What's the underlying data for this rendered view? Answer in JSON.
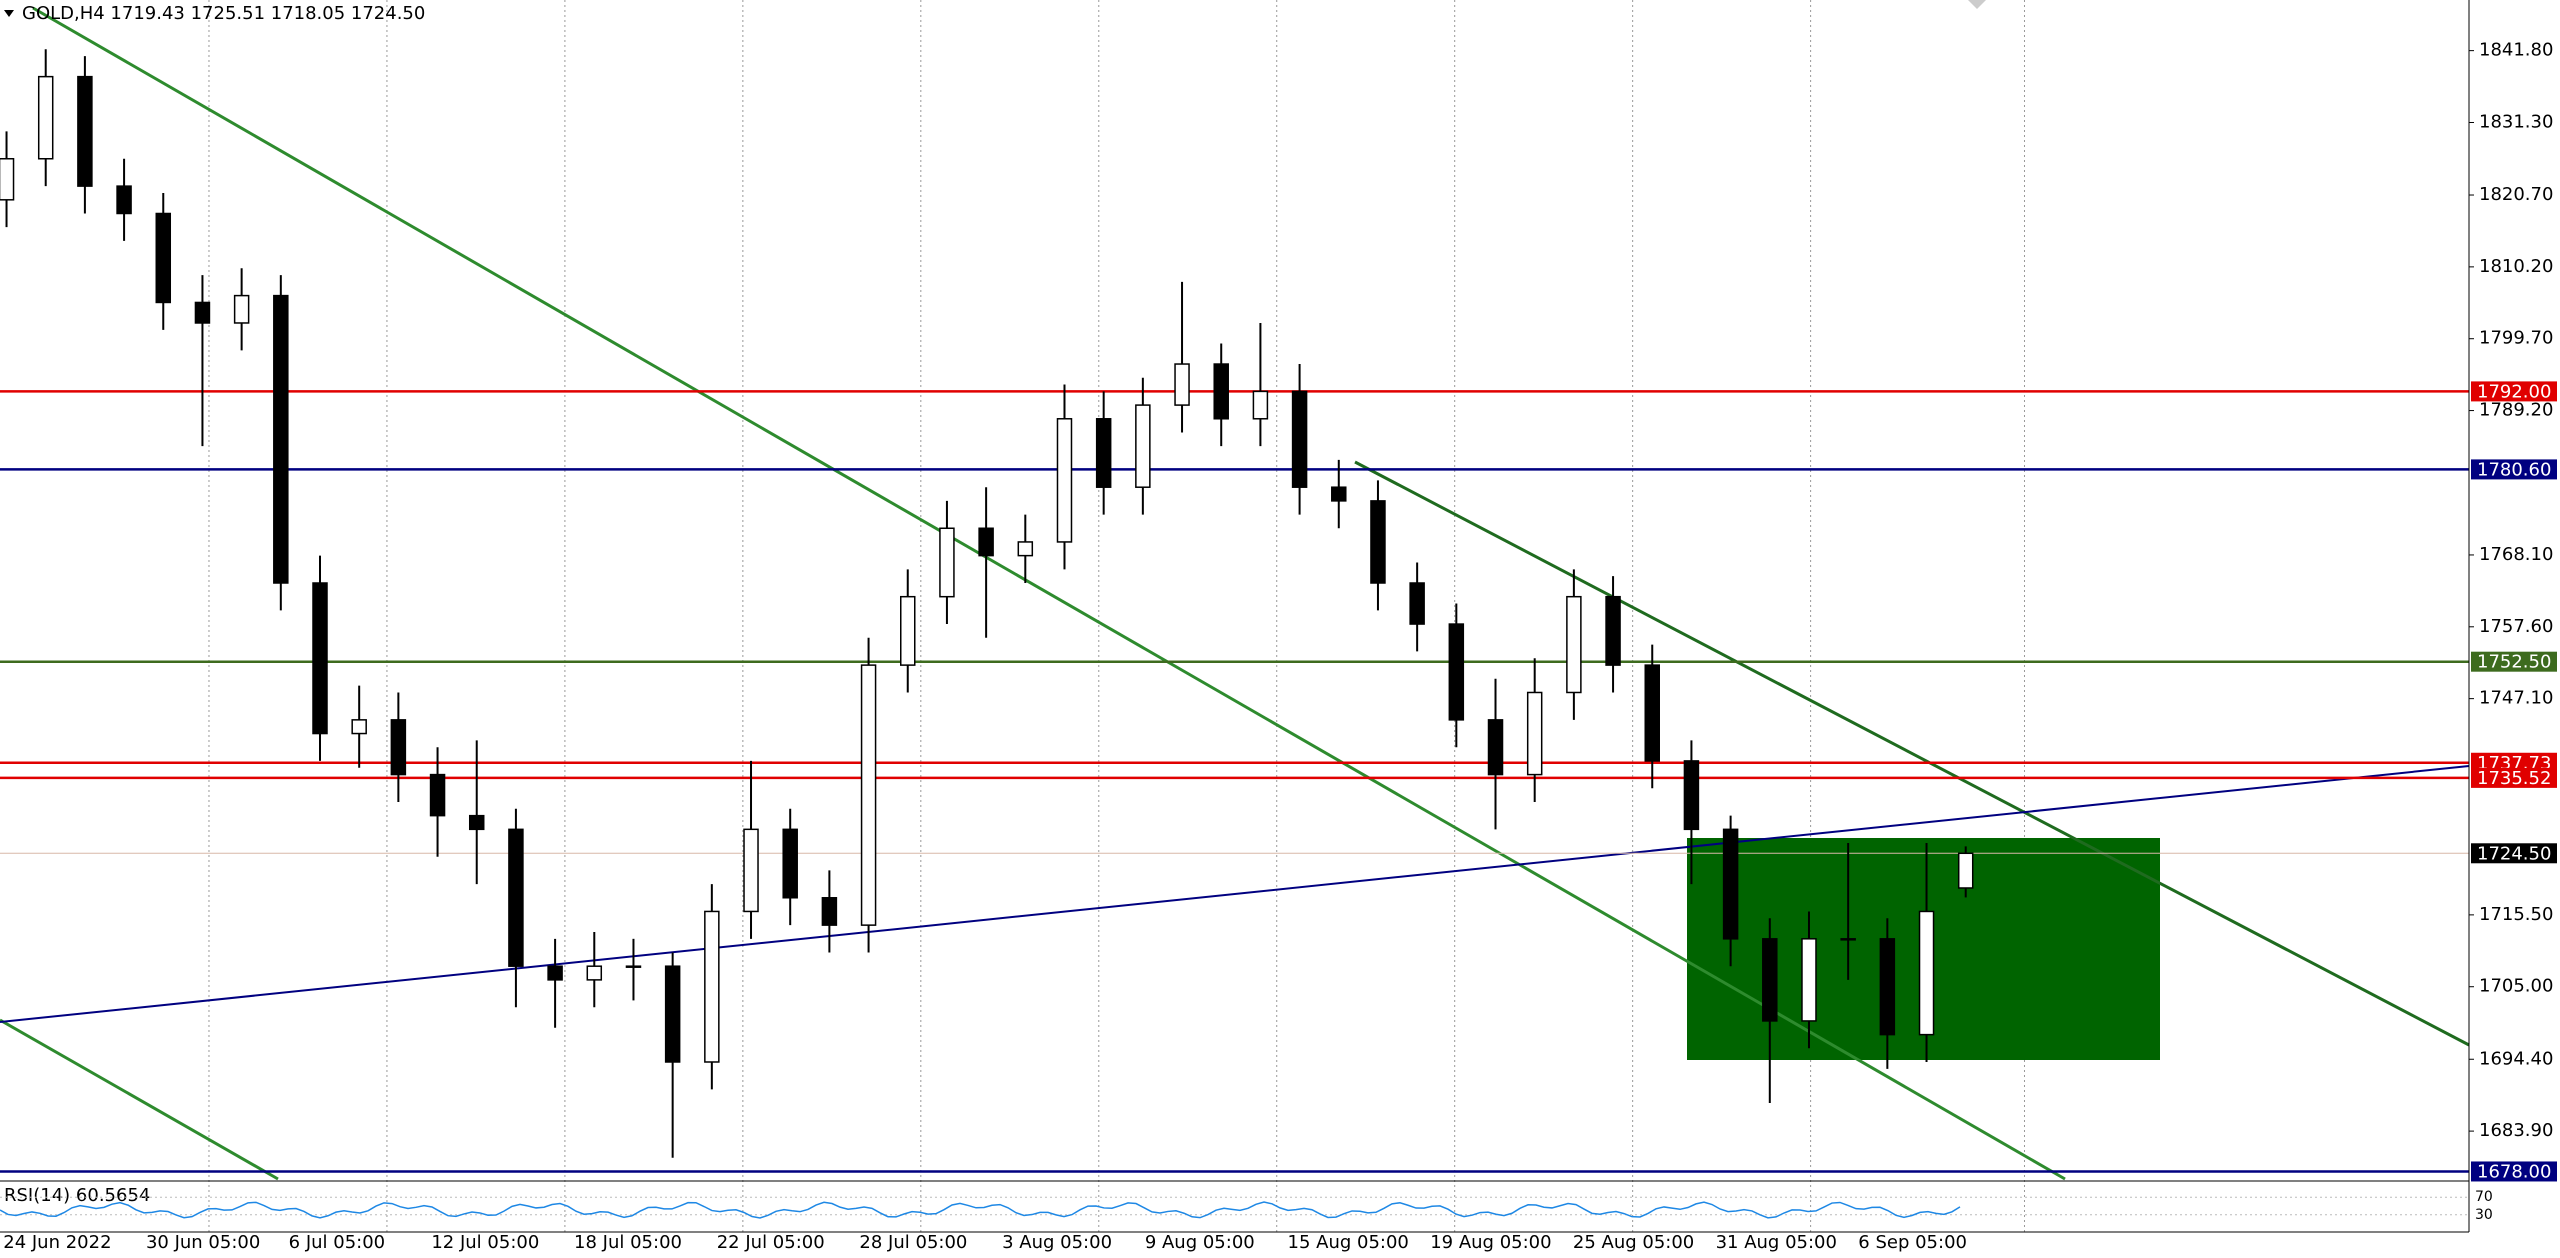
{
  "chart_data": {
    "type": "candlestick",
    "title": "GOLD,H4  1719.43 1725.51 1718.05 1724.50",
    "x_labels": [
      "24 Jun 2022",
      "30 Jun 05:00",
      "6 Jul 05:00",
      "12 Jul 05:00",
      "18 Jul 05:00",
      "22 Jul 05:00",
      "28 Jul 05:00",
      "3 Aug 05:00",
      "9 Aug 05:00",
      "15 Aug 05:00",
      "19 Aug 05:00",
      "25 Aug 05:00",
      "31 Aug 05:00",
      "6 Sep 05:00"
    ],
    "open": [
      1820,
      1826,
      1838,
      1822,
      1818,
      1805,
      1802,
      1806,
      1764,
      1742,
      1744,
      1736,
      1730,
      1728,
      1708,
      1706,
      1708,
      1708,
      1694,
      1716,
      1728,
      1718,
      1714,
      1752,
      1762,
      1772,
      1768,
      1770,
      1788,
      1778,
      1790,
      1796,
      1788,
      1792,
      1778,
      1776,
      1764,
      1758,
      1744,
      1736,
      1748,
      1762,
      1752,
      1738,
      1728,
      1712,
      1700,
      1712,
      1712,
      1698,
      1719.43
    ],
    "high": [
      1830,
      1842,
      1841,
      1826,
      1821,
      1809,
      1810,
      1809,
      1768,
      1749,
      1748,
      1740,
      1741,
      1731,
      1712,
      1713,
      1712,
      1710,
      1720,
      1738,
      1731,
      1722,
      1756,
      1766,
      1776,
      1778,
      1774,
      1793,
      1792,
      1794,
      1808,
      1799,
      1802,
      1796,
      1782,
      1779,
      1767,
      1761,
      1750,
      1753,
      1766,
      1765,
      1755,
      1741,
      1730,
      1715,
      1716,
      1726,
      1715,
      1726,
      1725.51
    ],
    "low": [
      1816,
      1822,
      1818,
      1814,
      1801,
      1784,
      1798,
      1760,
      1738,
      1737,
      1732,
      1724,
      1720,
      1702,
      1699,
      1702,
      1703,
      1680,
      1690,
      1712,
      1714,
      1710,
      1710,
      1748,
      1758,
      1756,
      1764,
      1766,
      1774,
      1774,
      1786,
      1784,
      1784,
      1774,
      1772,
      1760,
      1754,
      1740,
      1728,
      1732,
      1744,
      1748,
      1734,
      1720,
      1708,
      1688,
      1696,
      1706,
      1693,
      1694,
      1718.05
    ],
    "close": [
      1826,
      1838,
      1822,
      1818,
      1805,
      1802,
      1806,
      1764,
      1742,
      1744,
      1736,
      1730,
      1728,
      1708,
      1706,
      1708,
      1708,
      1694,
      1716,
      1728,
      1718,
      1714,
      1752,
      1762,
      1772,
      1768,
      1770,
      1788,
      1778,
      1790,
      1796,
      1788,
      1792,
      1778,
      1776,
      1764,
      1758,
      1744,
      1736,
      1748,
      1762,
      1752,
      1738,
      1728,
      1712,
      1700,
      1712,
      1712,
      1698,
      1716,
      1724.5
    ],
    "up_color": "#ffffff",
    "down_color": "#000000",
    "ylim": [
      1676.9,
      1849.2
    ],
    "yticks": [
      {
        "value": 1841.8,
        "label": "1841.80"
      },
      {
        "value": 1831.3,
        "label": "1831.30"
      },
      {
        "value": 1820.7,
        "label": "1820.70"
      },
      {
        "value": 1810.2,
        "label": "1810.20"
      },
      {
        "value": 1799.7,
        "label": "1799.70"
      },
      {
        "value": 1789.2,
        "label": "1789.20"
      },
      {
        "value": 1768.1,
        "label": "1768.10"
      },
      {
        "value": 1757.6,
        "label": "1757.60"
      },
      {
        "value": 1747.1,
        "label": "1747.10"
      },
      {
        "value": 1715.5,
        "label": "1715.50"
      },
      {
        "value": 1705,
        "label": "1705.00"
      },
      {
        "value": 1694.4,
        "label": "1694.40"
      },
      {
        "value": 1683.9,
        "label": "1683.90"
      }
    ],
    "levels": [
      {
        "value": 1792,
        "label": "1792.00",
        "color": "#e00000"
      },
      {
        "value": 1780.6,
        "label": "1780.60",
        "color": "#000080"
      },
      {
        "value": 1752.5,
        "label": "1752.50",
        "color": "#3d6b1e"
      },
      {
        "value": 1737.73,
        "label": "1737.73",
        "color": "#e00000"
      },
      {
        "value": 1735.52,
        "label": "1735.52",
        "color": "#e00000"
      },
      {
        "value": 1724.5,
        "label": "1724.50",
        "color": "#d8b8a8"
      },
      {
        "value": 1678,
        "label": "1678.00",
        "color": "#000080"
      }
    ],
    "rsi": {
      "title": "RSI(14) 60.5654",
      "ylim": [
        0,
        100
      ],
      "yticks": [
        70,
        30
      ],
      "color": "#1e88e5"
    }
  }
}
